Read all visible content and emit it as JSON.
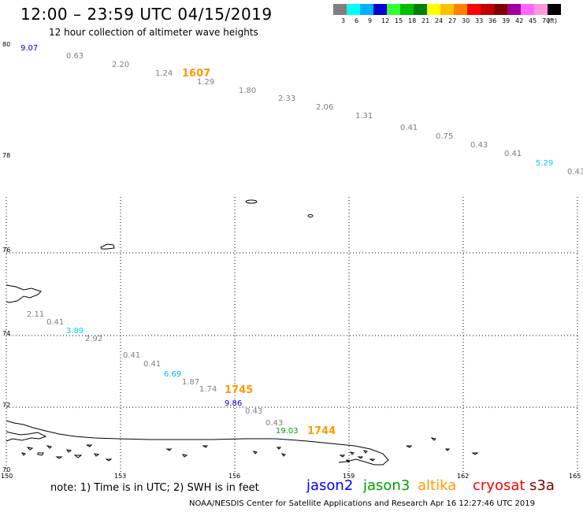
{
  "header": {
    "title": "12:00 – 23:59 UTC 04/15/2019",
    "subtitle": "12 hour collection of altimeter wave heights"
  },
  "legend_scale": {
    "colors": [
      "#7f7f7f",
      "#00ffff",
      "#00b0ff",
      "#0000d0",
      "#33ff33",
      "#00c000",
      "#008000",
      "#ffff00",
      "#ffc000",
      "#ff8000",
      "#ff0000",
      "#c00000",
      "#800000",
      "#a000a0",
      "#ff66ff",
      "#ff99dd",
      "#000000"
    ],
    "labels": [
      "3",
      "6",
      "9",
      "12",
      "15",
      "18",
      "21",
      "24",
      "27",
      "30",
      "33",
      "36",
      "39",
      "42",
      "45",
      "70",
      "(ft)"
    ]
  },
  "axes": {
    "lat_labels": [
      "80",
      "78",
      "76",
      "74",
      "72",
      "70"
    ],
    "lon_labels": [
      "150",
      "153",
      "156",
      "159",
      "162",
      "165"
    ]
  },
  "observations": [
    {
      "text": "9.07",
      "color": "#0000cc"
    },
    {
      "text": "0.63",
      "color": "#7f7f7f"
    },
    {
      "text": "2.20",
      "color": "#7f7f7f"
    },
    {
      "text": "1.24",
      "color": "#7f7f7f"
    },
    {
      "text": "1607",
      "color": "#ff9900"
    },
    {
      "text": "1.29",
      "color": "#7f7f7f"
    },
    {
      "text": "1.80",
      "color": "#7f7f7f"
    },
    {
      "text": "2.33",
      "color": "#7f7f7f"
    },
    {
      "text": "2.06",
      "color": "#7f7f7f"
    },
    {
      "text": "1.31",
      "color": "#7f7f7f"
    },
    {
      "text": "0.41",
      "color": "#7f7f7f"
    },
    {
      "text": "0.75",
      "color": "#7f7f7f"
    },
    {
      "text": "0.43",
      "color": "#7f7f7f"
    },
    {
      "text": "0.41",
      "color": "#7f7f7f"
    },
    {
      "text": "5.29",
      "color": "#00d0ff"
    },
    {
      "text": "0.43",
      "color": "#7f7f7f"
    },
    {
      "text": "2.11",
      "color": "#7f7f7f"
    },
    {
      "text": "0.41",
      "color": "#7f7f7f"
    },
    {
      "text": "3.89",
      "color": "#00d0ff"
    },
    {
      "text": "2.92",
      "color": "#7f7f7f"
    },
    {
      "text": "0.41",
      "color": "#7f7f7f"
    },
    {
      "text": "0.41",
      "color": "#7f7f7f"
    },
    {
      "text": "6.69",
      "color": "#00b0ff"
    },
    {
      "text": "1.87",
      "color": "#7f7f7f"
    },
    {
      "text": "1.74",
      "color": "#7f7f7f"
    },
    {
      "text": "1745",
      "color": "#ff9900"
    },
    {
      "text": "9.86",
      "color": "#0000cc"
    },
    {
      "text": "0.43",
      "color": "#7f7f7f"
    },
    {
      "text": "0.43",
      "color": "#7f7f7f"
    },
    {
      "text": "19.03",
      "color": "#00a000"
    },
    {
      "text": "1744",
      "color": "#ff9900"
    }
  ],
  "footer": {
    "note": "note:  1) Time is in UTC;  2) SWH is in feet",
    "satellites": [
      {
        "name": "jason2",
        "color": "#0000ff"
      },
      {
        "name": "jason3",
        "color": "#00a000"
      },
      {
        "name": "altika",
        "color": "#ff9900"
      },
      {
        "name": "cryosat",
        "color": "#ff0000"
      },
      {
        "name": "s3a",
        "color": "#800000"
      }
    ],
    "credit": "NOAA/NESDIS Center for Satellite Applications and Research    Apr 16 12:27:46 UTC 2019"
  }
}
